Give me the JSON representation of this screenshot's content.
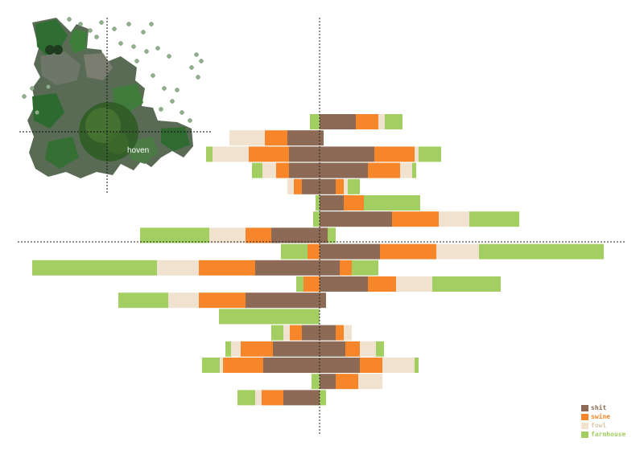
{
  "colors": {
    "background": "#ffffff",
    "axis": "#222222"
  },
  "map_inset": {
    "label": "hoven",
    "icon": "aerial-map-icon"
  },
  "legend": {
    "items": [
      {
        "label": "shit",
        "color": "#8c6a55"
      },
      {
        "label": "swine",
        "color": "#f7862a"
      },
      {
        "label": "fowl",
        "color": "#f0e2cf"
      },
      {
        "label": "farmhouse",
        "color": "#a3cf62"
      }
    ]
  },
  "chart_data": {
    "type": "bar",
    "orientation": "horizontal",
    "stacked": true,
    "diverging": true,
    "title": "",
    "xlabel": "",
    "ylabel": "",
    "series_order": [
      "shit",
      "swine",
      "fowl",
      "farmhouse"
    ],
    "series_colors": [
      "#8c6a55",
      "#f7862a",
      "#f0e2cf",
      "#a3cf62"
    ],
    "rows": [
      {
        "left": [
          0,
          0,
          0,
          12
        ],
        "right": [
          45,
          28,
          8,
          22
        ]
      },
      {
        "left": [
          40,
          28,
          44,
          0
        ],
        "right": [
          5,
          0,
          0,
          0
        ]
      },
      {
        "left": [
          38,
          50,
          45,
          8
        ],
        "right": [
          68,
          50,
          5,
          28
        ]
      },
      {
        "left": [
          38,
          16,
          17,
          13
        ],
        "right": [
          60,
          40,
          15,
          5
        ]
      },
      {
        "left": [
          22,
          10,
          8,
          0
        ],
        "right": [
          20,
          10,
          5,
          15
        ]
      },
      {
        "left": [
          0,
          0,
          0,
          5
        ],
        "right": [
          30,
          25,
          0,
          70
        ]
      },
      {
        "left": [
          0,
          0,
          0,
          8
        ],
        "right": [
          90,
          58,
          38,
          62
        ]
      },
      {
        "left": [
          60,
          32,
          45,
          86
        ],
        "right": [
          10,
          0,
          0,
          10
        ]
      },
      {
        "left": [
          0,
          15,
          0,
          33
        ],
        "right": [
          75,
          70,
          53,
          155
        ]
      },
      {
        "left": [
          80,
          70,
          52,
          155
        ],
        "right": [
          25,
          15,
          0,
          33
        ]
      },
      {
        "left": [
          0,
          20,
          0,
          9
        ],
        "right": [
          60,
          35,
          45,
          85
        ]
      },
      {
        "left": [
          92,
          58,
          38,
          62
        ],
        "right": [
          8,
          0,
          0,
          0
        ]
      },
      {
        "left": [
          0,
          0,
          0,
          125
        ],
        "right": [
          0,
          0,
          0,
          0
        ]
      },
      {
        "left": [
          22,
          15,
          8,
          15
        ],
        "right": [
          20,
          10,
          10,
          0
        ]
      },
      {
        "left": [
          58,
          40,
          12,
          7
        ],
        "right": [
          32,
          18,
          20,
          10
        ]
      },
      {
        "left": [
          70,
          50,
          4,
          22
        ],
        "right": [
          50,
          28,
          40,
          5
        ]
      },
      {
        "left": [
          0,
          0,
          0,
          10
        ],
        "right": [
          20,
          28,
          30,
          0
        ]
      },
      {
        "left": [
          45,
          27,
          8,
          22
        ],
        "right": [
          0,
          0,
          0,
          8
        ]
      }
    ]
  }
}
